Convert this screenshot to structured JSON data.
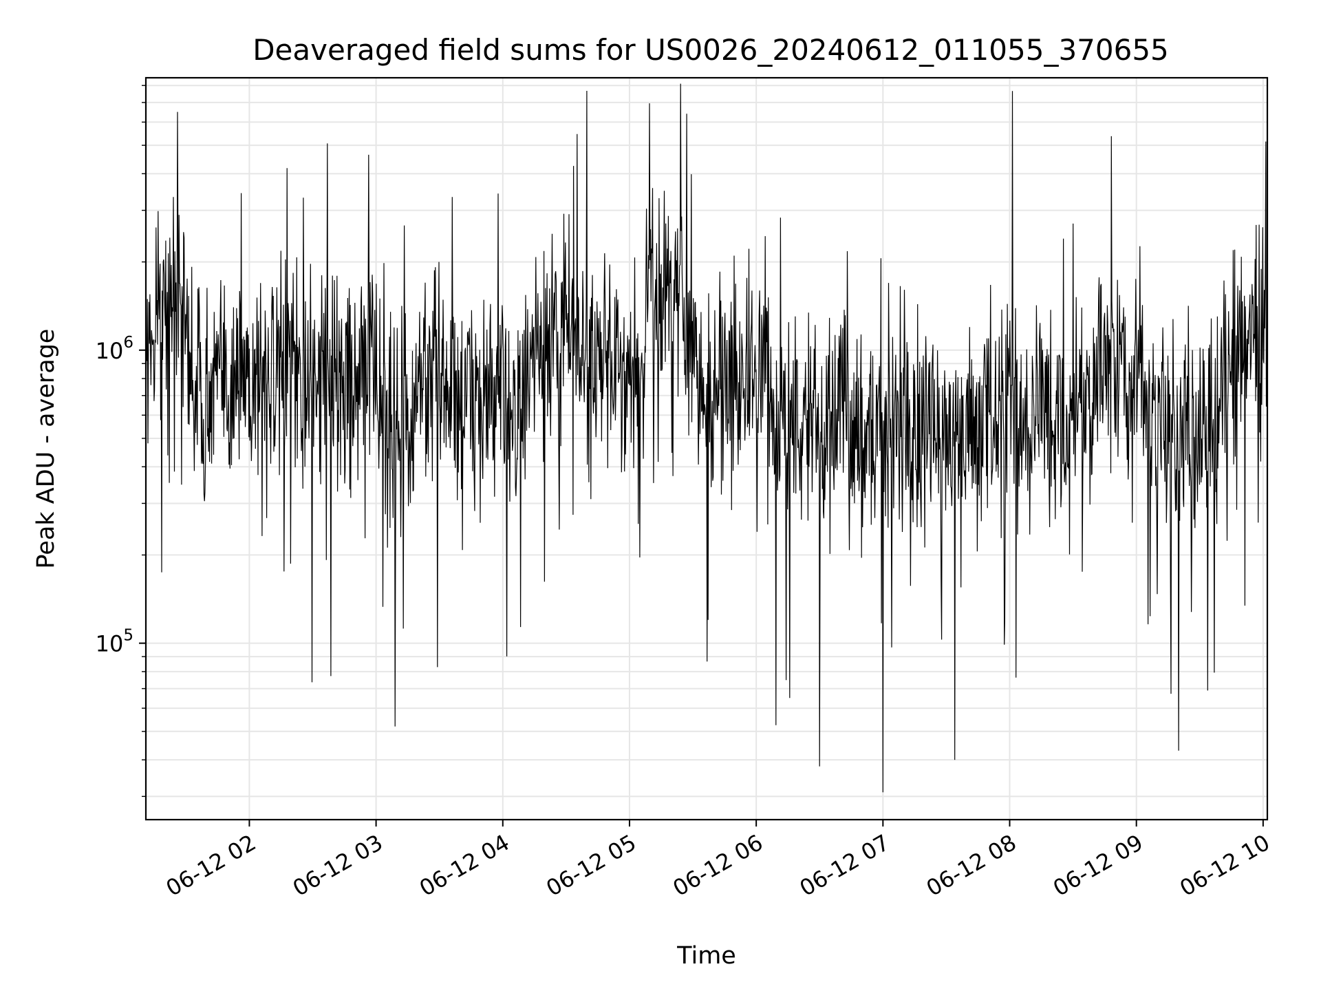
{
  "chart_data": {
    "type": "line",
    "title": "Deaveraged field sums for US0026_20240612_011055_370655",
    "xlabel": "Time",
    "ylabel": "Peak ADU - average",
    "y_scale": "log",
    "ylim": [
      25000,
      8500000
    ],
    "xlim": [
      "2024-06-12 01:11",
      "2024-06-12 10:02"
    ],
    "grid": true,
    "line_color": "#000000",
    "grid_color": "#e6e6e6",
    "x_ticks": [
      {
        "value": "2024-06-12 02:00",
        "label": "06-12 02"
      },
      {
        "value": "2024-06-12 03:00",
        "label": "06-12 03"
      },
      {
        "value": "2024-06-12 04:00",
        "label": "06-12 04"
      },
      {
        "value": "2024-06-12 05:00",
        "label": "06-12 05"
      },
      {
        "value": "2024-06-12 06:00",
        "label": "06-12 06"
      },
      {
        "value": "2024-06-12 07:00",
        "label": "06-12 07"
      },
      {
        "value": "2024-06-12 08:00",
        "label": "06-12 08"
      },
      {
        "value": "2024-06-12 09:00",
        "label": "06-12 09"
      },
      {
        "value": "2024-06-12 10:00",
        "label": "06-12 10"
      }
    ],
    "y_ticks": [
      {
        "value": 100000,
        "base": "10",
        "exp": "5"
      },
      {
        "value": 1000000,
        "base": "10",
        "exp": "6"
      }
    ],
    "series": [
      {
        "x": [
          "2024-06-12 01:11",
          "2024-06-12 01:20",
          "2024-06-12 01:26",
          "2024-06-12 01:30",
          "2024-06-12 01:40",
          "2024-06-12 01:45",
          "2024-06-12 02:10",
          "2024-06-12 02:30",
          "2024-06-12 03:00",
          "2024-06-12 03:09",
          "2024-06-12 03:20",
          "2024-06-12 03:50",
          "2024-06-12 04:10",
          "2024-06-12 04:30",
          "2024-06-12 04:40",
          "2024-06-12 05:05",
          "2024-06-12 05:14",
          "2024-06-12 05:35",
          "2024-06-12 05:50",
          "2024-06-12 06:05",
          "2024-06-12 06:30",
          "2024-06-12 06:40",
          "2024-06-12 07:00",
          "2024-06-12 07:20",
          "2024-06-12 07:34",
          "2024-06-12 08:00",
          "2024-06-12 08:30",
          "2024-06-12 08:50",
          "2024-06-12 09:10",
          "2024-06-12 09:20",
          "2024-06-12 09:40",
          "2024-06-12 09:50",
          "2024-06-12 10:00"
        ],
        "values": [
          1100000,
          1400000,
          6500000,
          1000000,
          700000,
          800000,
          900000,
          800000,
          900000,
          52000,
          800000,
          700000,
          700000,
          1300000,
          900000,
          900000,
          3300000,
          700000,
          800000,
          900000,
          38000,
          700000,
          31000,
          700000,
          40000,
          700000,
          600000,
          900000,
          600000,
          43000,
          700000,
          1100000,
          1200000
        ]
      }
    ]
  }
}
